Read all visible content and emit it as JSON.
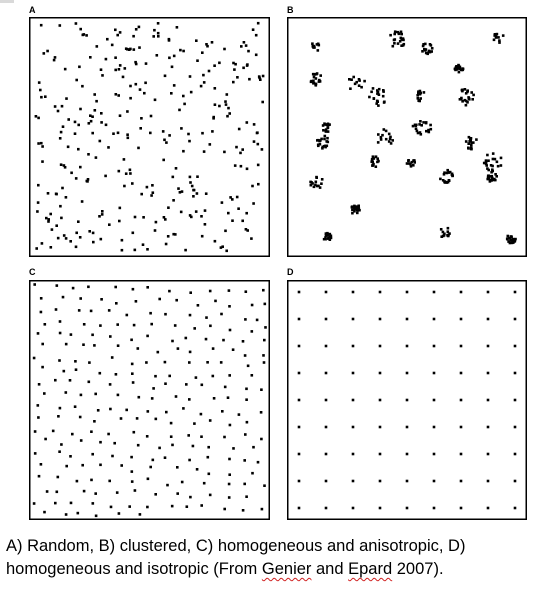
{
  "panels": [
    {
      "id": "A",
      "label": "A",
      "pattern": "random"
    },
    {
      "id": "B",
      "label": "B",
      "pattern": "clustered"
    },
    {
      "id": "C",
      "label": "C",
      "pattern": "homogeneous-anisotropic"
    },
    {
      "id": "D",
      "label": "D",
      "pattern": "homogeneous-isotropic"
    }
  ],
  "caption": {
    "line1": "A) Random, B) clustered, C) homogeneous and anisotropic, D)",
    "line2_prefix": "homogeneous and isotropic (From ",
    "name1": "Genier",
    "middle": " and ",
    "name2": "Epard",
    "suffix": " 2007)."
  },
  "colors": {
    "dot": "#000000",
    "border": "#000000",
    "spellcheck": "#d02020"
  },
  "grid_d": {
    "rows": 9,
    "cols": 9
  }
}
